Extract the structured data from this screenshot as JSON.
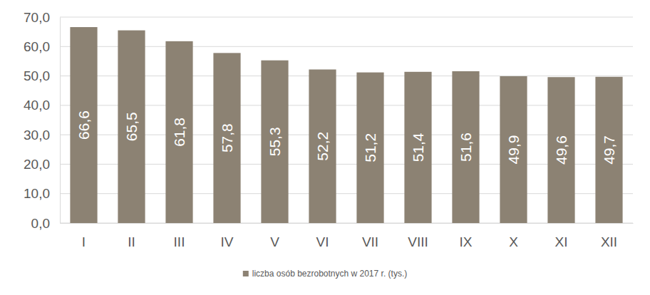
{
  "chart_data": {
    "type": "bar",
    "categories": [
      "I",
      "II",
      "III",
      "IV",
      "V",
      "VI",
      "VII",
      "VIII",
      "IX",
      "X",
      "XI",
      "XII"
    ],
    "series": [
      {
        "name": "liczba osób bezrobotnych w 2017 r. (tys.)",
        "color": "#8c8273",
        "values": [
          66.6,
          65.5,
          61.8,
          57.8,
          55.3,
          52.2,
          51.2,
          51.4,
          51.6,
          49.9,
          49.6,
          49.7
        ],
        "value_labels": [
          "66,6",
          "65,5",
          "61,8",
          "57,8",
          "55,3",
          "52,2",
          "51,2",
          "51,4",
          "51,6",
          "49,9",
          "49,6",
          "49,7"
        ]
      }
    ],
    "ylim": [
      0,
      70
    ],
    "yticks": [
      {
        "value": 0,
        "label": "0,0"
      },
      {
        "value": 10,
        "label": "10,0"
      },
      {
        "value": 20,
        "label": "20,0"
      },
      {
        "value": 30,
        "label": "30,0"
      },
      {
        "value": 40,
        "label": "40,0"
      },
      {
        "value": 50,
        "label": "50,0"
      },
      {
        "value": 60,
        "label": "60,0"
      },
      {
        "value": 70,
        "label": "70,0"
      }
    ],
    "grid": true,
    "data_labels": true,
    "legend": "bottom"
  }
}
